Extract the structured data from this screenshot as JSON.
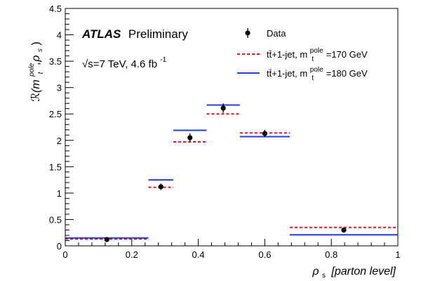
{
  "chart_data": {
    "type": "scatter",
    "title": "",
    "experiment": "ATLAS",
    "experiment_status": "Preliminary",
    "energy_label": "√s=7 TeV, 4.6 fb",
    "energy_label_sup": "-1",
    "ylabel": "ℛ(m",
    "ylabel_sub": "t",
    "ylabel_sup": "pole",
    "ylabel_tail": ",ρ",
    "ylabel_sub2": "s",
    "ylabel_close": ")",
    "xlabel_symbol": "ρ",
    "xlabel_sub": "s",
    "xlabel_text": "[parton level]",
    "xlim": [
      0,
      1
    ],
    "ylim": [
      0,
      4.5
    ],
    "xticks": [
      0,
      0.2,
      0.4,
      0.6,
      0.8,
      1
    ],
    "xtick_labels": [
      "0",
      "0.2",
      "0.4",
      "0.6",
      "0.8",
      "1"
    ],
    "yticks": [
      0,
      0.5,
      1,
      1.5,
      2,
      2.5,
      3,
      3.5,
      4,
      4.5
    ],
    "ytick_labels": [
      "0",
      "0.5",
      "1",
      "1.5",
      "2",
      "2.5",
      "3",
      "3.5",
      "4",
      "4.5"
    ],
    "bins": [
      [
        0,
        0.25
      ],
      [
        0.25,
        0.325
      ],
      [
        0.325,
        0.425
      ],
      [
        0.425,
        0.525
      ],
      [
        0.525,
        0.675
      ],
      [
        0.675,
        1.0
      ]
    ],
    "legend": {
      "position": "top-right",
      "data_label": "Data",
      "s170_prefix": "tt̄+1-jet, m",
      "s170_sub": "t",
      "s170_sup": "pole",
      "s170_value": "=170 GeV",
      "s180_prefix": "tt̄+1-jet, m",
      "s180_sub": "t",
      "s180_sup": "pole",
      "s180_value": "=180 GeV"
    },
    "series": [
      {
        "name": "Data",
        "kind": "points",
        "x": [
          0.125,
          0.2875,
          0.375,
          0.475,
          0.6,
          0.8375
        ],
        "values": [
          0.12,
          1.12,
          2.05,
          2.61,
          2.13,
          0.3
        ],
        "errors": [
          0.02,
          0.06,
          0.08,
          0.09,
          0.07,
          0.03
        ],
        "color": "#000000"
      },
      {
        "name": "tt̄+1-jet, m_t^pole=170 GeV",
        "kind": "hist",
        "values": [
          0.13,
          1.11,
          1.97,
          2.5,
          2.14,
          0.35
        ],
        "color": "#e8141a",
        "dashed": true
      },
      {
        "name": "tt̄+1-jet, m_t^pole=180 GeV",
        "kind": "hist",
        "values": [
          0.15,
          1.25,
          2.19,
          2.67,
          2.07,
          0.21
        ],
        "color": "#1f3fd6",
        "dashed": false
      }
    ]
  }
}
